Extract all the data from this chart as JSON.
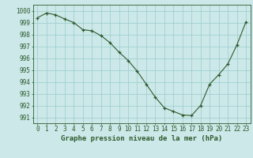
{
  "hours": [
    0,
    1,
    2,
    3,
    4,
    5,
    6,
    7,
    8,
    9,
    10,
    11,
    12,
    13,
    14,
    15,
    16,
    17,
    18,
    19,
    20,
    21,
    22,
    23
  ],
  "pressure": [
    999.4,
    999.8,
    999.65,
    999.3,
    999.0,
    998.4,
    998.3,
    997.9,
    997.3,
    996.5,
    995.8,
    994.9,
    993.8,
    992.7,
    991.8,
    991.5,
    991.2,
    991.15,
    992.0,
    993.8,
    994.6,
    995.5,
    997.1,
    999.05
  ],
  "xlim": [
    -0.5,
    23.5
  ],
  "ylim": [
    990.5,
    1000.5
  ],
  "yticks": [
    991,
    992,
    993,
    994,
    995,
    996,
    997,
    998,
    999,
    1000
  ],
  "xticks": [
    0,
    1,
    2,
    3,
    4,
    5,
    6,
    7,
    8,
    9,
    10,
    11,
    12,
    13,
    14,
    15,
    16,
    17,
    18,
    19,
    20,
    21,
    22,
    23
  ],
  "line_color": "#2d5a2d",
  "bg_color": "#cce8e8",
  "grid_color": "#99cccc",
  "xlabel": "Graphe pression niveau de la mer (hPa)",
  "tick_fontsize": 5.5,
  "xlabel_fontsize": 6.5
}
